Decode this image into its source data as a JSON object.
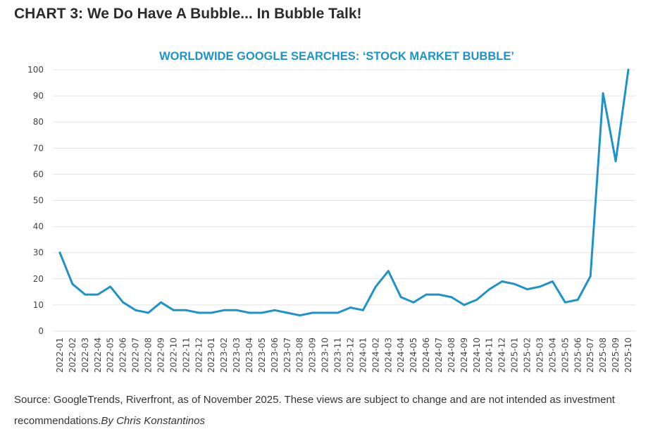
{
  "heading": "CHART 3: We Do Have A Bubble... In Bubble Talk!",
  "source_text": "Source: GoogleTrends, Riverfront, as of November 2025. These views are subject to change and are not intended as investment recommendations.",
  "author_text": "By Chris Konstantinos",
  "chart_data": {
    "type": "line",
    "title": "WORLDWIDE GOOGLE SEARCHES: ‘STOCK MARKET BUBBLE’",
    "xlabel": "",
    "ylabel": "",
    "ylim": [
      0,
      100
    ],
    "yticks": [
      0,
      10,
      20,
      30,
      40,
      50,
      60,
      70,
      80,
      90,
      100
    ],
    "grid": true,
    "line_color": "#1e93c7",
    "categories": [
      "2022-01",
      "2022-02",
      "2022-03",
      "2022-04",
      "2022-05",
      "2022-06",
      "2022-07",
      "2022-08",
      "2022-09",
      "2022-10",
      "2022-11",
      "2022-12",
      "2023-01",
      "2023-02",
      "2023-03",
      "2023-04",
      "2023-05",
      "2023-06",
      "2023-07",
      "2023-08",
      "2023-09",
      "2023-10",
      "2023-11",
      "2023-12",
      "2024-01",
      "2024-02",
      "2024-03",
      "2024-04",
      "2024-05",
      "2024-06",
      "2024-07",
      "2024-08",
      "2024-09",
      "2024-10",
      "2024-11",
      "2024-12",
      "2025-01",
      "2025-02",
      "2025-03",
      "2025-04",
      "2025-05",
      "2025-06",
      "2025-07",
      "2025-08",
      "2025-09",
      "2025-10"
    ],
    "values": [
      30,
      18,
      14,
      14,
      17,
      11,
      8,
      7,
      11,
      8,
      8,
      7,
      7,
      8,
      8,
      7,
      7,
      8,
      7,
      6,
      7,
      7,
      7,
      9,
      8,
      17,
      23,
      13,
      11,
      14,
      14,
      13,
      10,
      12,
      16,
      19,
      18,
      16,
      17,
      19,
      11,
      12,
      21,
      91,
      65,
      100
    ]
  }
}
